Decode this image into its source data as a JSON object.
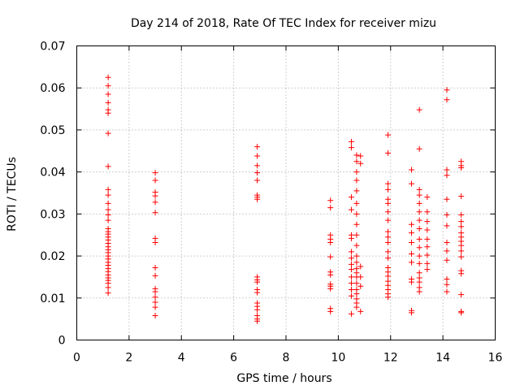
{
  "chart_data": {
    "type": "scatter",
    "title": "Day 214 of 2018, Rate Of TEC Index for receiver mizu",
    "xlabel": "GPS time / hours",
    "ylabel": "ROTI / TECUs",
    "xlim": [
      0,
      16
    ],
    "ylim": [
      0,
      0.07
    ],
    "xticks": [
      0,
      2,
      4,
      6,
      8,
      10,
      12,
      14,
      16
    ],
    "yticks": [
      0,
      0.01,
      0.02,
      0.03,
      0.04,
      0.05,
      0.06,
      0.07
    ],
    "grid": true,
    "marker": "+",
    "color": "#ff0000",
    "series": [
      {
        "name": "ROTI",
        "points": [
          [
            1.2,
            0.0625
          ],
          [
            1.2,
            0.0605
          ],
          [
            1.2,
            0.0585
          ],
          [
            1.2,
            0.0565
          ],
          [
            1.2,
            0.0548
          ],
          [
            1.2,
            0.054
          ],
          [
            1.2,
            0.0492
          ],
          [
            1.2,
            0.0413
          ],
          [
            1.2,
            0.0358
          ],
          [
            1.2,
            0.0345
          ],
          [
            1.2,
            0.0325
          ],
          [
            1.2,
            0.031
          ],
          [
            1.2,
            0.0298
          ],
          [
            1.2,
            0.0285
          ],
          [
            1.2,
            0.0265
          ],
          [
            1.2,
            0.0258
          ],
          [
            1.2,
            0.0252
          ],
          [
            1.2,
            0.0245
          ],
          [
            1.2,
            0.0238
          ],
          [
            1.2,
            0.023
          ],
          [
            1.2,
            0.0222
          ],
          [
            1.2,
            0.0215
          ],
          [
            1.2,
            0.0208
          ],
          [
            1.2,
            0.02
          ],
          [
            1.2,
            0.0193
          ],
          [
            1.2,
            0.0185
          ],
          [
            1.2,
            0.0178
          ],
          [
            1.2,
            0.017
          ],
          [
            1.2,
            0.0163
          ],
          [
            1.2,
            0.0155
          ],
          [
            1.2,
            0.0148
          ],
          [
            1.2,
            0.0142
          ],
          [
            1.2,
            0.0135
          ],
          [
            1.2,
            0.0125
          ],
          [
            1.2,
            0.0112
          ],
          [
            3.0,
            0.0398
          ],
          [
            3.0,
            0.038
          ],
          [
            3.0,
            0.0352
          ],
          [
            3.0,
            0.0343
          ],
          [
            3.0,
            0.0328
          ],
          [
            3.0,
            0.0303
          ],
          [
            3.0,
            0.0242
          ],
          [
            3.0,
            0.0232
          ],
          [
            3.0,
            0.0172
          ],
          [
            3.0,
            0.0153
          ],
          [
            3.0,
            0.0122
          ],
          [
            3.0,
            0.0115
          ],
          [
            3.0,
            0.0102
          ],
          [
            3.0,
            0.009
          ],
          [
            3.0,
            0.0078
          ],
          [
            3.0,
            0.0058
          ],
          [
            6.9,
            0.046
          ],
          [
            6.9,
            0.0438
          ],
          [
            6.9,
            0.0415
          ],
          [
            6.9,
            0.0398
          ],
          [
            6.9,
            0.038
          ],
          [
            6.9,
            0.0345
          ],
          [
            6.9,
            0.034
          ],
          [
            6.9,
            0.0335
          ],
          [
            6.9,
            0.015
          ],
          [
            6.9,
            0.0143
          ],
          [
            6.9,
            0.0138
          ],
          [
            6.9,
            0.012
          ],
          [
            6.9,
            0.0113
          ],
          [
            6.9,
            0.0088
          ],
          [
            6.9,
            0.008
          ],
          [
            6.9,
            0.0072
          ],
          [
            6.9,
            0.0058
          ],
          [
            6.9,
            0.005
          ],
          [
            6.9,
            0.0045
          ],
          [
            9.7,
            0.0332
          ],
          [
            9.7,
            0.0315
          ],
          [
            9.7,
            0.025
          ],
          [
            9.7,
            0.024
          ],
          [
            9.7,
            0.0232
          ],
          [
            9.7,
            0.0198
          ],
          [
            9.7,
            0.0162
          ],
          [
            9.7,
            0.0155
          ],
          [
            9.7,
            0.0133
          ],
          [
            9.7,
            0.0128
          ],
          [
            9.7,
            0.0122
          ],
          [
            9.7,
            0.0075
          ],
          [
            9.7,
            0.0068
          ],
          [
            10.5,
            0.0472
          ],
          [
            10.5,
            0.0458
          ],
          [
            10.5,
            0.034
          ],
          [
            10.5,
            0.031
          ],
          [
            10.5,
            0.025
          ],
          [
            10.5,
            0.0242
          ],
          [
            10.5,
            0.021
          ],
          [
            10.5,
            0.0195
          ],
          [
            10.5,
            0.018
          ],
          [
            10.5,
            0.0168
          ],
          [
            10.5,
            0.015
          ],
          [
            10.5,
            0.0135
          ],
          [
            10.5,
            0.012
          ],
          [
            10.5,
            0.0105
          ],
          [
            10.5,
            0.0062
          ],
          [
            10.7,
            0.044
          ],
          [
            10.7,
            0.0425
          ],
          [
            10.7,
            0.04
          ],
          [
            10.7,
            0.038
          ],
          [
            10.7,
            0.0355
          ],
          [
            10.7,
            0.0325
          ],
          [
            10.7,
            0.03
          ],
          [
            10.7,
            0.0275
          ],
          [
            10.7,
            0.025
          ],
          [
            10.7,
            0.0225
          ],
          [
            10.7,
            0.02
          ],
          [
            10.7,
            0.0185
          ],
          [
            10.7,
            0.017
          ],
          [
            10.7,
            0.016
          ],
          [
            10.7,
            0.015
          ],
          [
            10.7,
            0.0135
          ],
          [
            10.7,
            0.012
          ],
          [
            10.7,
            0.011
          ],
          [
            10.7,
            0.0098
          ],
          [
            10.7,
            0.0088
          ],
          [
            10.7,
            0.0078
          ],
          [
            10.85,
            0.0438
          ],
          [
            10.85,
            0.042
          ],
          [
            10.85,
            0.0175
          ],
          [
            10.85,
            0.015
          ],
          [
            10.85,
            0.0128
          ],
          [
            10.85,
            0.0068
          ],
          [
            11.9,
            0.0488
          ],
          [
            11.9,
            0.0445
          ],
          [
            11.9,
            0.0372
          ],
          [
            11.9,
            0.0358
          ],
          [
            11.9,
            0.0335
          ],
          [
            11.9,
            0.0325
          ],
          [
            11.9,
            0.0305
          ],
          [
            11.9,
            0.0285
          ],
          [
            11.9,
            0.0258
          ],
          [
            11.9,
            0.0245
          ],
          [
            11.9,
            0.0232
          ],
          [
            11.9,
            0.021
          ],
          [
            11.9,
            0.0195
          ],
          [
            11.9,
            0.0172
          ],
          [
            11.9,
            0.0162
          ],
          [
            11.9,
            0.0152
          ],
          [
            11.9,
            0.014
          ],
          [
            11.9,
            0.013
          ],
          [
            11.9,
            0.012
          ],
          [
            11.9,
            0.011
          ],
          [
            11.9,
            0.0102
          ],
          [
            12.8,
            0.0405
          ],
          [
            12.8,
            0.0372
          ],
          [
            12.8,
            0.0275
          ],
          [
            12.8,
            0.0255
          ],
          [
            12.8,
            0.0232
          ],
          [
            12.8,
            0.0205
          ],
          [
            12.8,
            0.0185
          ],
          [
            12.8,
            0.0145
          ],
          [
            12.8,
            0.0138
          ],
          [
            12.8,
            0.007
          ],
          [
            12.8,
            0.0065
          ],
          [
            13.1,
            0.0548
          ],
          [
            13.1,
            0.0455
          ],
          [
            13.1,
            0.0358
          ],
          [
            13.1,
            0.0345
          ],
          [
            13.1,
            0.0325
          ],
          [
            13.1,
            0.0305
          ],
          [
            13.1,
            0.0285
          ],
          [
            13.1,
            0.0265
          ],
          [
            13.1,
            0.024
          ],
          [
            13.1,
            0.022
          ],
          [
            13.1,
            0.02
          ],
          [
            13.1,
            0.0182
          ],
          [
            13.1,
            0.016
          ],
          [
            13.1,
            0.0148
          ],
          [
            13.1,
            0.0138
          ],
          [
            13.1,
            0.0125
          ],
          [
            13.1,
            0.0115
          ],
          [
            13.4,
            0.034
          ],
          [
            13.4,
            0.0305
          ],
          [
            13.4,
            0.0282
          ],
          [
            13.4,
            0.0262
          ],
          [
            13.4,
            0.024
          ],
          [
            13.4,
            0.0222
          ],
          [
            13.4,
            0.0202
          ],
          [
            13.4,
            0.0182
          ],
          [
            13.4,
            0.0168
          ],
          [
            14.15,
            0.0595
          ],
          [
            14.15,
            0.0572
          ],
          [
            14.15,
            0.0405
          ],
          [
            14.15,
            0.0392
          ],
          [
            14.15,
            0.0335
          ],
          [
            14.15,
            0.0298
          ],
          [
            14.15,
            0.0272
          ],
          [
            14.15,
            0.0232
          ],
          [
            14.15,
            0.0212
          ],
          [
            14.15,
            0.019
          ],
          [
            14.15,
            0.0145
          ],
          [
            14.15,
            0.0132
          ],
          [
            14.15,
            0.0115
          ],
          [
            14.7,
            0.0425
          ],
          [
            14.7,
            0.0415
          ],
          [
            14.7,
            0.041
          ],
          [
            14.7,
            0.0342
          ],
          [
            14.7,
            0.0298
          ],
          [
            14.7,
            0.0282
          ],
          [
            14.7,
            0.027
          ],
          [
            14.7,
            0.0255
          ],
          [
            14.7,
            0.0245
          ],
          [
            14.7,
            0.0235
          ],
          [
            14.7,
            0.0225
          ],
          [
            14.7,
            0.0212
          ],
          [
            14.7,
            0.0198
          ],
          [
            14.7,
            0.0165
          ],
          [
            14.7,
            0.0158
          ],
          [
            14.7,
            0.0108
          ],
          [
            14.7,
            0.0068
          ],
          [
            14.7,
            0.0065
          ]
        ]
      }
    ]
  }
}
